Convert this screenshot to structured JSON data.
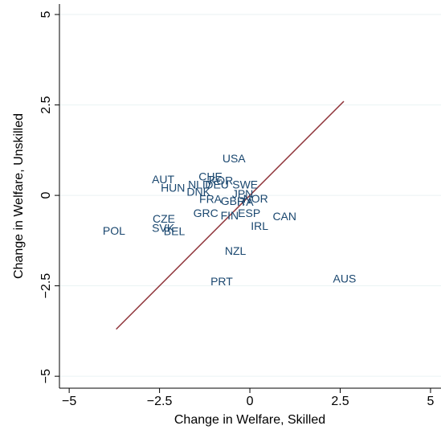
{
  "chart_data": {
    "type": "scatter",
    "x_label": "Change in Welfare, Skilled",
    "y_label": "Change in Welfare, Unskilled",
    "labels": [
      "USA",
      "AUT",
      "CHE",
      "KOR",
      "NLD",
      "DEU",
      "SWE",
      "HUN",
      "DNK",
      "JPN",
      "FRA",
      "GBR",
      "ITA",
      "NOR",
      "GRC",
      "FIN",
      "ESP",
      "CAN",
      "CZE",
      "IRL",
      "POL",
      "SVK",
      "BEL",
      "NZL",
      "PRT",
      "AUS"
    ],
    "x": [
      -0.44,
      -2.4,
      -1.09,
      -0.8,
      -1.4,
      -0.91,
      -0.13,
      -2.13,
      -1.42,
      -0.2,
      -1.09,
      -0.47,
      -0.13,
      0.16,
      -1.22,
      -0.56,
      -0.02,
      0.96,
      -2.38,
      0.27,
      -3.76,
      -2.4,
      -2.09,
      -0.4,
      -0.78,
      2.62
    ],
    "y": [
      1.0,
      0.42,
      0.49,
      0.38,
      0.27,
      0.27,
      0.27,
      0.18,
      0.07,
      0.02,
      -0.13,
      -0.18,
      -0.2,
      -0.11,
      -0.51,
      -0.58,
      -0.51,
      -0.6,
      -0.67,
      -0.87,
      -1.0,
      -0.93,
      -1.02,
      -1.56,
      -2.4,
      -2.33
    ],
    "label_color": "#1a476f",
    "fit_line": {
      "x": [
        -3.7,
        2.6
      ],
      "y": [
        -3.7,
        2.6
      ],
      "color": "#90353b"
    },
    "xlim": [
      -5.27,
      5.29
    ],
    "ylim": [
      -5.33,
      5.29
    ],
    "xticks": [
      {
        "value": -5,
        "label": "−5"
      },
      {
        "value": -2.5,
        "label": "−2.5"
      },
      0,
      2.5,
      5
    ],
    "yticks": [
      {
        "value": -5,
        "label": "−5"
      },
      {
        "value": -2.5,
        "label": "−2.5"
      },
      0,
      2.5,
      5
    ],
    "grid": true
  }
}
